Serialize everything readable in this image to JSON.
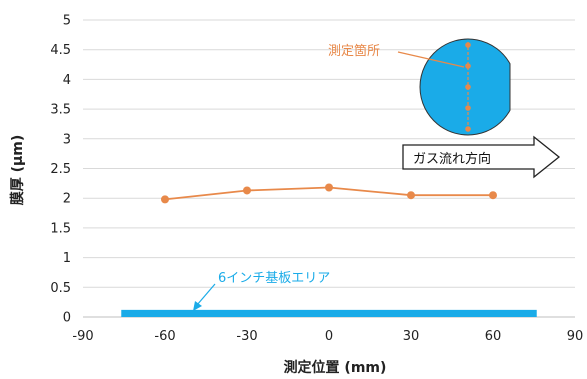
{
  "chart_data": {
    "type": "line",
    "title": "",
    "xlabel": "測定位置 (mm)",
    "ylabel": "膜厚 (μm)",
    "xlim": [
      -90,
      90
    ],
    "ylim": [
      0,
      5
    ],
    "x_ticks": [
      -90,
      -60,
      -30,
      0,
      30,
      60,
      90
    ],
    "y_ticks": [
      0,
      0.5,
      1,
      1.5,
      2,
      2.5,
      3,
      3.5,
      4,
      4.5,
      5
    ],
    "x_tick_labels": [
      "-90",
      "-60",
      "-30",
      "0",
      "30",
      "60",
      "90"
    ],
    "y_tick_labels": [
      "0",
      "0.5",
      "1",
      "1.5",
      "2",
      "2.5",
      "3",
      "3.5",
      "4",
      "4.5",
      "5"
    ],
    "grid": "horizontal",
    "series": [
      {
        "x": [
          -60,
          -30,
          0,
          30,
          60
        ],
        "values": [
          1.98,
          2.13,
          2.18,
          2.05,
          2.05
        ],
        "color": "#E8894A"
      }
    ],
    "substrate_band": {
      "x_range": [
        -76,
        76
      ],
      "y_range": [
        0,
        0.12
      ],
      "color": "#1AABE8"
    },
    "annotations": {
      "substrate_label": "6インチ基板エリア",
      "substrate_label_color": "#1AABE8",
      "points_label": "測定箇所",
      "points_label_color": "#E8894A",
      "gas_flow_label": "ガス流れ方向",
      "wafer_color": "#1AABE8",
      "point_color": "#E8894A",
      "wafer_points": 5
    }
  }
}
